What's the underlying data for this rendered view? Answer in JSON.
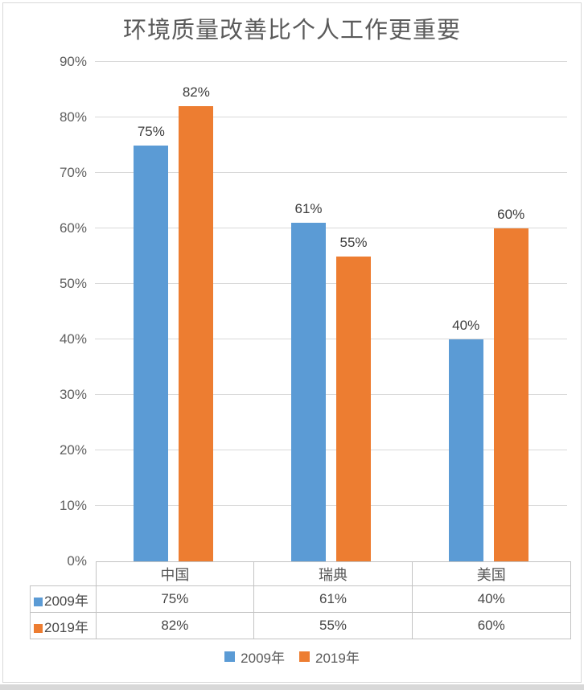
{
  "title": "环境质量改善比个人工作更重要",
  "colors": {
    "series_2009": "#5B9BD5",
    "series_2019": "#ED7D31",
    "gridline": "#d9d9d9",
    "axis_text": "#5f5f5f",
    "table_border": "#c3c3c3",
    "frame_border": "#d9d9d9",
    "bottom_strip": "#d8d8d8"
  },
  "chart_data": {
    "type": "bar",
    "title": "环境质量改善比个人工作更重要",
    "categories": [
      "中国",
      "瑞典",
      "美国"
    ],
    "series": [
      {
        "name": "2009年",
        "color": "#5B9BD5",
        "values": [
          75,
          61,
          40
        ]
      },
      {
        "name": "2019年",
        "color": "#ED7D31",
        "values": [
          82,
          55,
          60
        ]
      }
    ],
    "value_suffix": "%",
    "data_labels": [
      [
        "75%",
        "61%",
        "40%"
      ],
      [
        "82%",
        "55%",
        "60%"
      ]
    ],
    "y_axis": {
      "min": 0,
      "max": 90,
      "step": 10,
      "tick_labels": [
        "0%",
        "10%",
        "20%",
        "30%",
        "40%",
        "50%",
        "60%",
        "70%",
        "80%",
        "90%"
      ]
    },
    "grid": true,
    "legend_position": "bottom",
    "legend": [
      "2009年",
      "2019年"
    ],
    "data_table": {
      "row_headers": [
        "2009年",
        "2019年"
      ],
      "column_headers": [
        "中国",
        "瑞典",
        "美国"
      ],
      "rows": [
        [
          "75%",
          "61%",
          "40%"
        ],
        [
          "82%",
          "55%",
          "60%"
        ]
      ]
    }
  }
}
